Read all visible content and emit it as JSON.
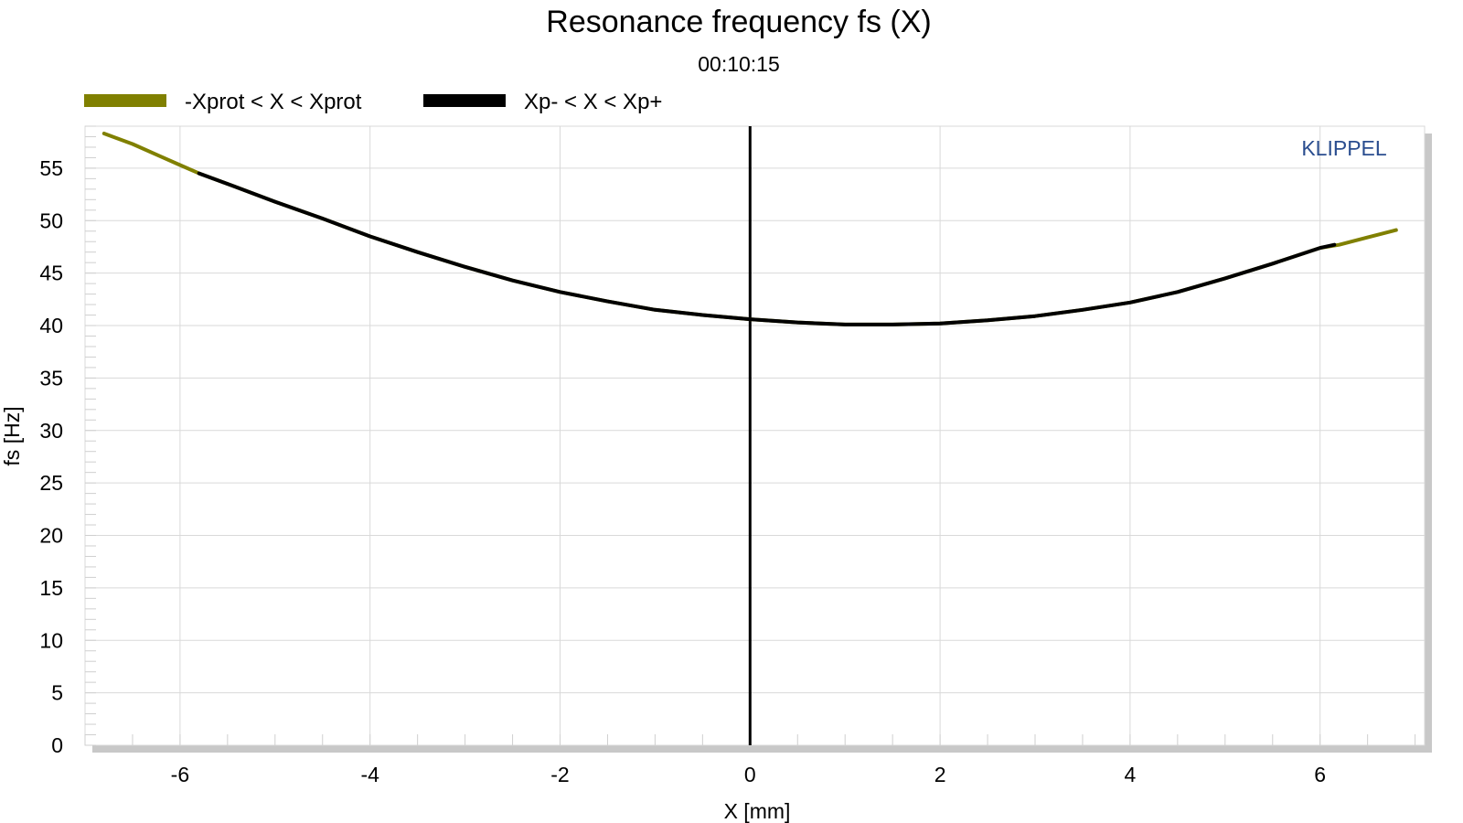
{
  "chart_data": {
    "type": "line",
    "title": "Resonance frequency fs (X)",
    "subtitle": "00:10:15",
    "xlabel": "X [mm]",
    "ylabel": "fs [Hz]",
    "watermark": "KLIPPEL",
    "xlim": [
      -7.0,
      7.1
    ],
    "ylim": [
      0,
      59
    ],
    "xticks": [
      -6,
      -4,
      -2,
      0,
      2,
      4,
      6
    ],
    "yticks": [
      0,
      5,
      10,
      15,
      20,
      25,
      30,
      35,
      40,
      45,
      50,
      55
    ],
    "grid": true,
    "legend_position": "top-left",
    "zero_line_x": 0,
    "series": [
      {
        "name": "-Xprot < X < Xprot",
        "color": "#808000",
        "x": [
          -6.8,
          -6.5,
          -6.2,
          -6.0,
          -5.8,
          -5.5,
          -5.0,
          -4.5,
          -4.0,
          -3.5,
          -3.0,
          -2.5,
          -2.0,
          -1.5,
          -1.0,
          -0.5,
          0.0,
          0.5,
          1.0,
          1.5,
          2.0,
          2.5,
          3.0,
          3.5,
          4.0,
          4.5,
          5.0,
          5.5,
          6.0,
          6.2,
          6.5,
          6.8
        ],
        "y": [
          58.3,
          57.3,
          56.1,
          55.3,
          54.5,
          53.5,
          51.8,
          50.2,
          48.5,
          47.0,
          45.6,
          44.3,
          43.2,
          42.3,
          41.5,
          41.0,
          40.6,
          40.3,
          40.1,
          40.1,
          40.2,
          40.5,
          40.9,
          41.5,
          42.2,
          43.2,
          44.5,
          45.9,
          47.4,
          47.7,
          48.4,
          49.1
        ]
      },
      {
        "name": "Xp- < X < Xp+",
        "color": "#000000",
        "x": [
          -5.8,
          -5.5,
          -5.0,
          -4.5,
          -4.0,
          -3.5,
          -3.0,
          -2.5,
          -2.0,
          -1.5,
          -1.0,
          -0.5,
          0.0,
          0.5,
          1.0,
          1.5,
          2.0,
          2.5,
          3.0,
          3.5,
          4.0,
          4.5,
          5.0,
          5.5,
          6.0,
          6.15
        ],
        "y": [
          54.5,
          53.5,
          51.8,
          50.2,
          48.5,
          47.0,
          45.6,
          44.3,
          43.2,
          42.3,
          41.5,
          41.0,
          40.6,
          40.3,
          40.1,
          40.1,
          40.2,
          40.5,
          40.9,
          41.5,
          42.2,
          43.2,
          44.5,
          45.9,
          47.4,
          47.7
        ]
      }
    ]
  }
}
